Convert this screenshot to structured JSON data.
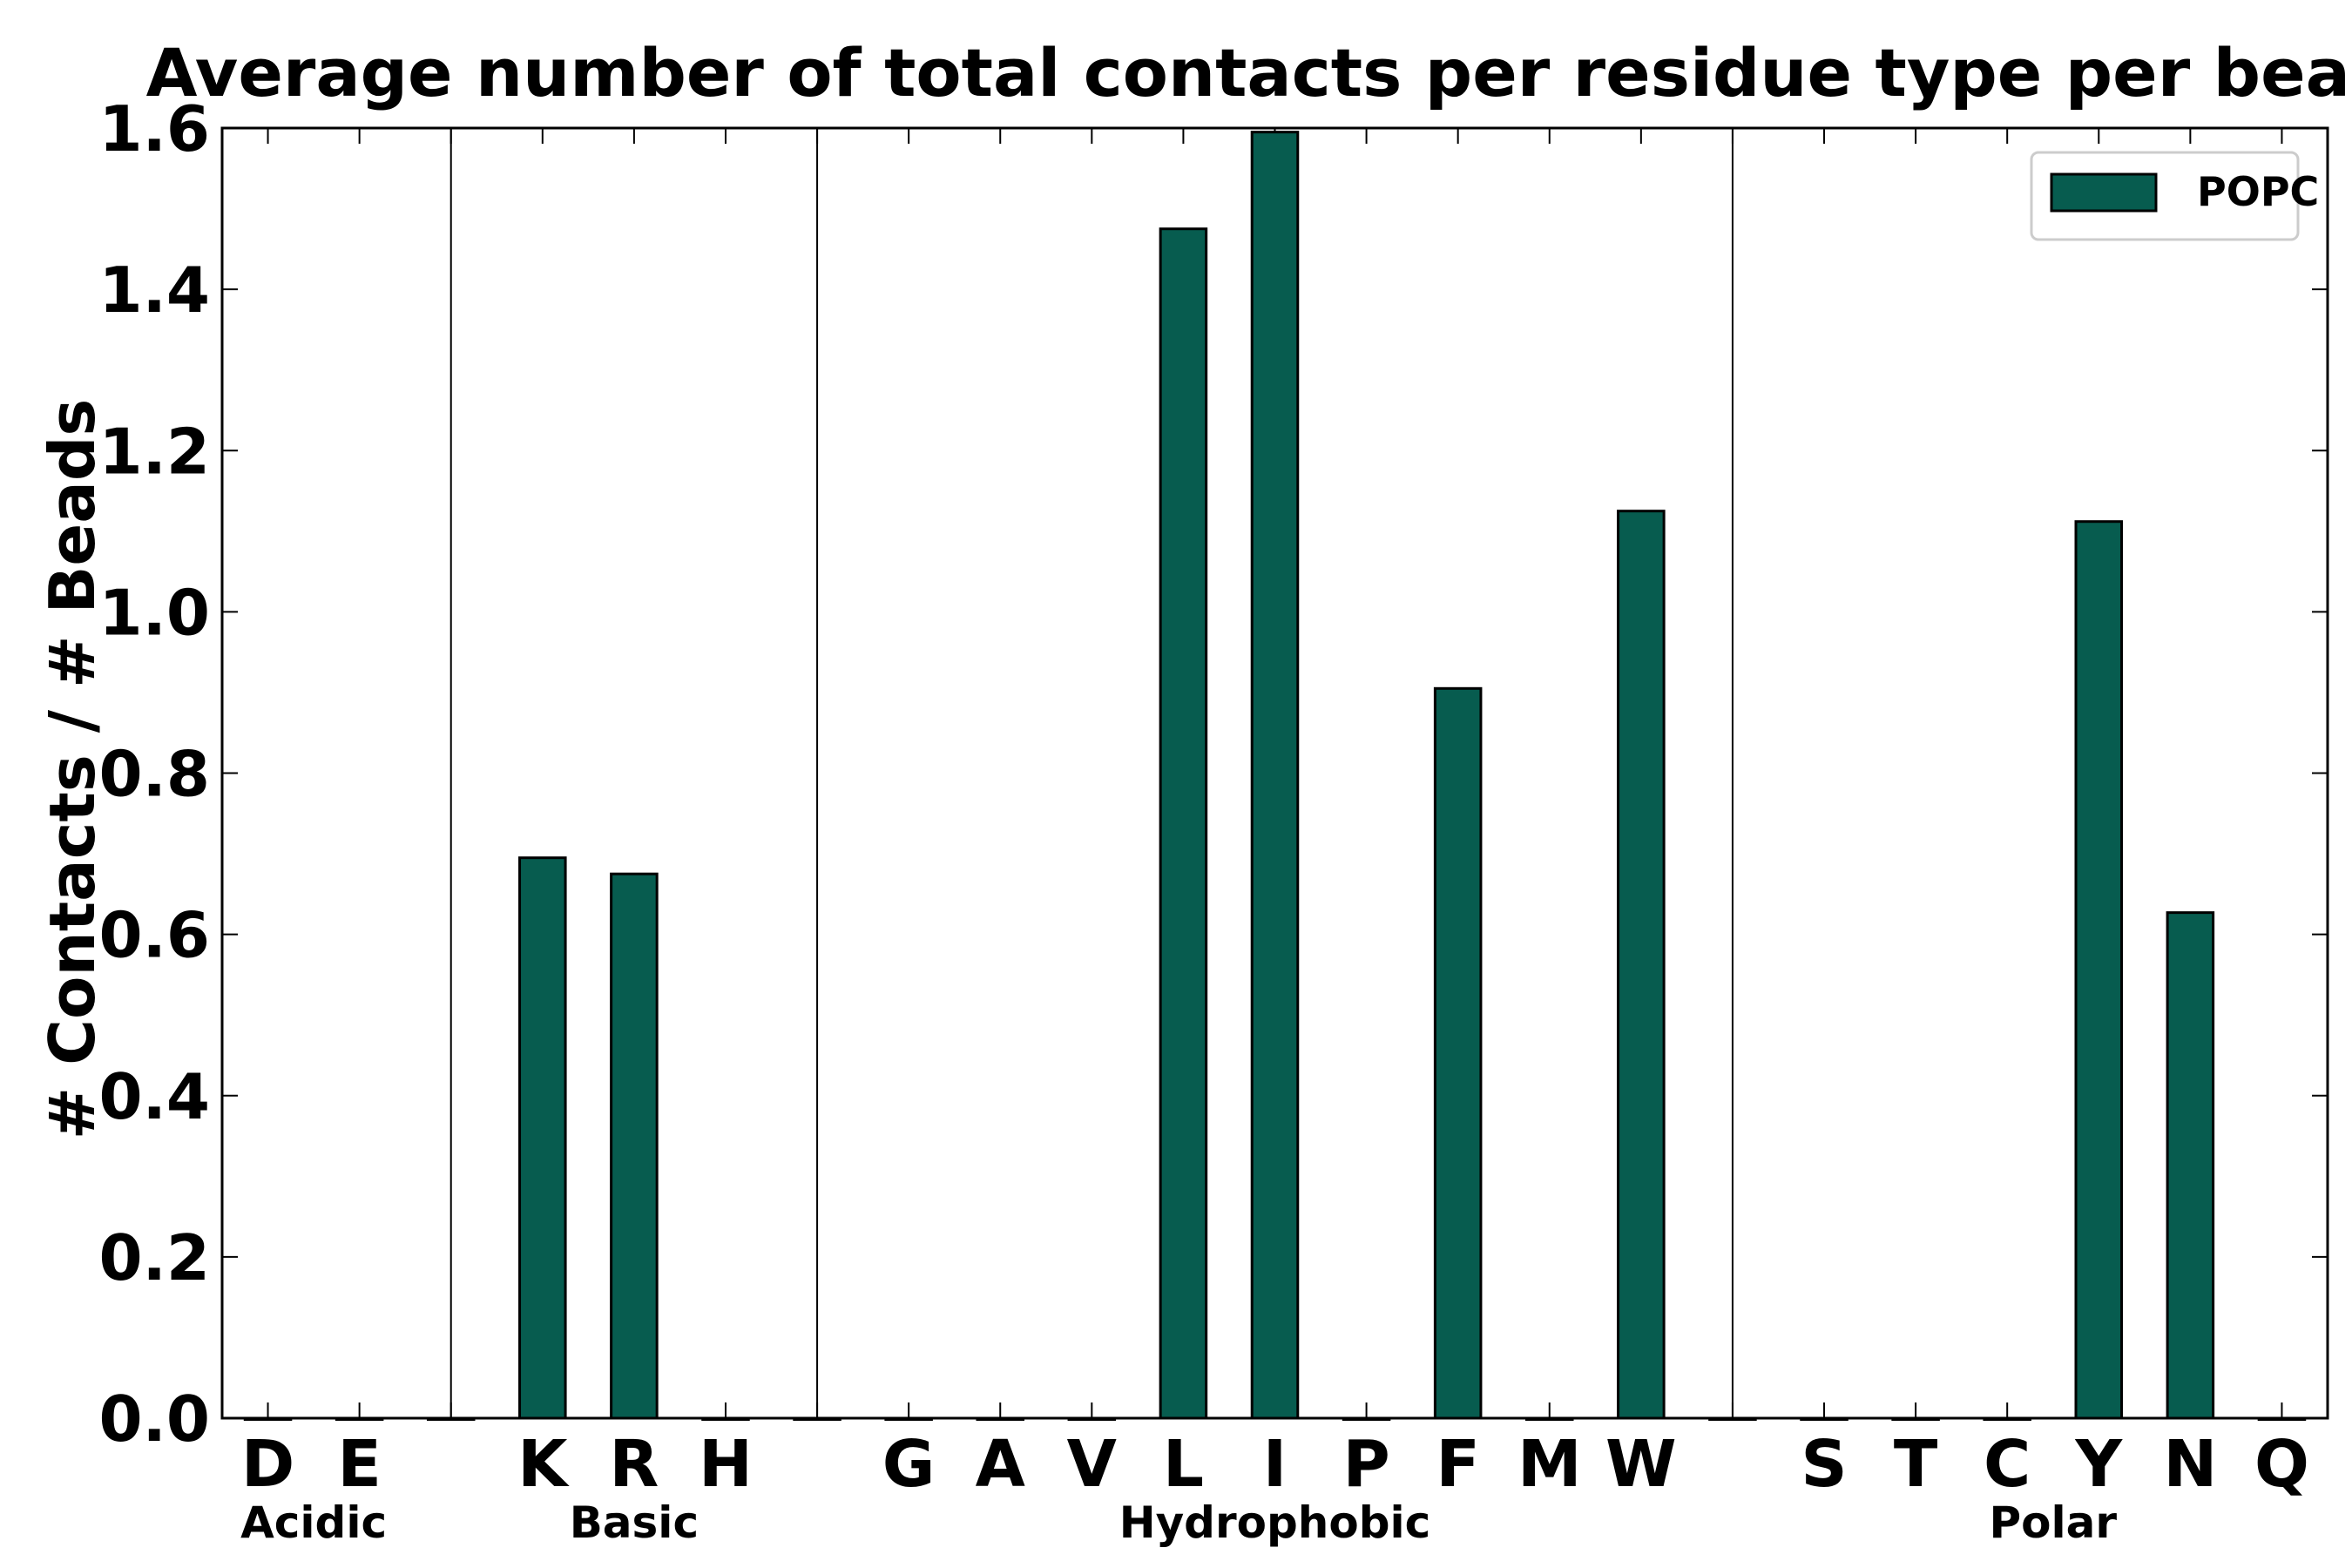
{
  "chart_data": {
    "type": "bar",
    "title": "Average number of total contacts per residue type per bead",
    "ylabel": "# Contacts / # Beads",
    "xlabel": "",
    "ylim": [
      0,
      1.6
    ],
    "yticks": [
      "0.0",
      "0.2",
      "0.4",
      "0.6",
      "0.8",
      "1.0",
      "1.2",
      "1.4",
      "1.6"
    ],
    "categories": [
      "D",
      "E",
      "",
      "K",
      "R",
      "H",
      "",
      "G",
      "A",
      "V",
      "L",
      "I",
      "P",
      "F",
      "M",
      "W",
      "",
      "S",
      "T",
      "C",
      "Y",
      "N",
      "Q"
    ],
    "series": [
      {
        "name": "POPC",
        "color": "#075C4F",
        "values": [
          0,
          0,
          0,
          0.695,
          0.675,
          0,
          0,
          0,
          0,
          0,
          1.475,
          1.595,
          0,
          0.905,
          0,
          1.125,
          0,
          0,
          0,
          0,
          1.112,
          0.627,
          0
        ]
      }
    ],
    "groups": [
      {
        "label": "Acidic",
        "start": 0,
        "end": 1
      },
      {
        "label": "Basic",
        "start": 3,
        "end": 5
      },
      {
        "label": "Hydrophobic",
        "start": 7,
        "end": 15
      },
      {
        "label": "Polar",
        "start": 17,
        "end": 22
      }
    ],
    "legend_position": "top-right",
    "grid": false
  }
}
